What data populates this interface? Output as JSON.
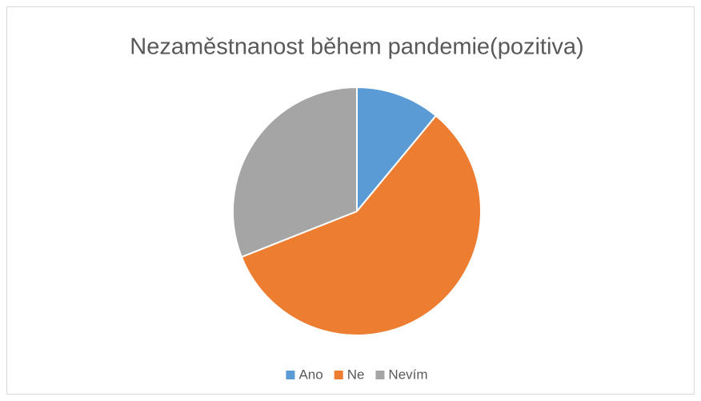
{
  "chart_data": {
    "type": "pie",
    "title": "Nezaměstnanost během pandemie(pozitiva)",
    "categories": [
      "Ano",
      "Ne",
      "Nevím"
    ],
    "values": [
      11,
      58,
      31
    ],
    "colors": [
      "#5b9bd5",
      "#ed7d31",
      "#a5a5a5"
    ],
    "legend": "bottom"
  }
}
